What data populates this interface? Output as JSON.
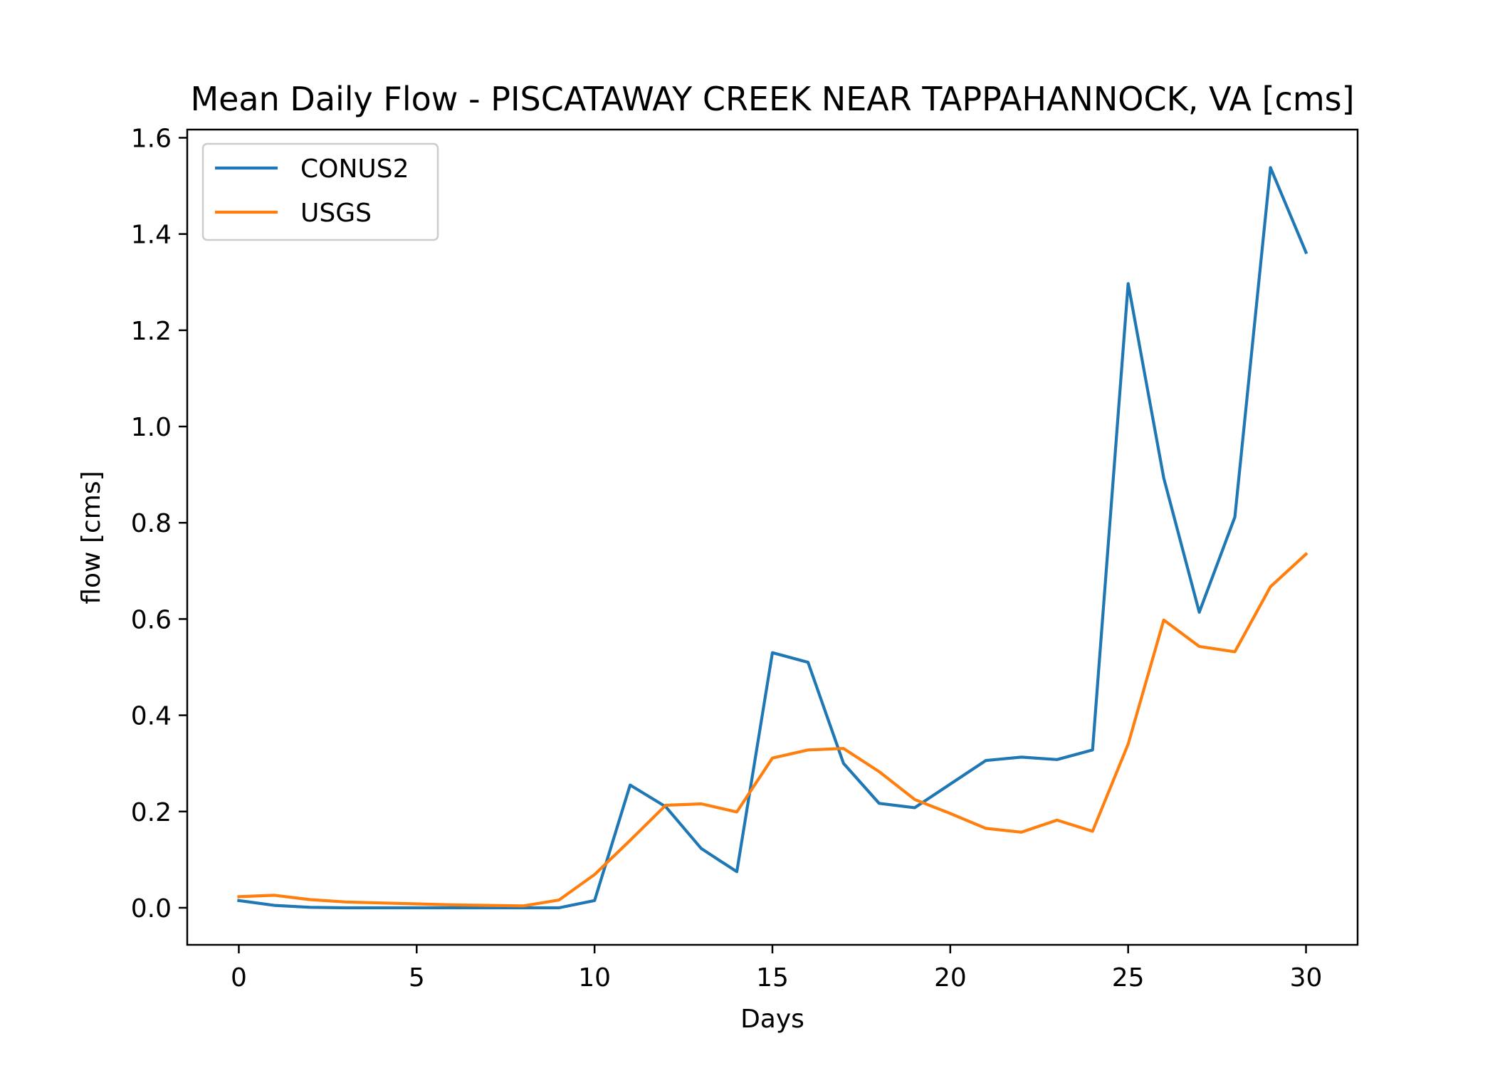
{
  "chart_data": {
    "type": "line",
    "title": "Mean Daily Flow - PISCATAWAY CREEK NEAR TAPPAHANNOCK, VA [cms]",
    "xlabel": "Days",
    "ylabel": "flow [cms]",
    "xlim": [
      -1.45,
      31.45
    ],
    "ylim": [
      -0.077,
      1.617
    ],
    "xticks": [
      0,
      5,
      10,
      15,
      20,
      25,
      30
    ],
    "xtick_labels": [
      "0",
      "5",
      "10",
      "15",
      "20",
      "25",
      "30"
    ],
    "yticks": [
      0.0,
      0.2,
      0.4,
      0.6,
      0.8,
      1.0,
      1.2,
      1.4,
      1.6
    ],
    "ytick_labels": [
      "0.0",
      "0.2",
      "0.4",
      "0.6",
      "0.8",
      "1.0",
      "1.2",
      "1.4",
      "1.6"
    ],
    "grid": false,
    "legend_position": "top-left",
    "x": [
      0,
      1,
      2,
      3,
      4,
      5,
      6,
      7,
      8,
      9,
      10,
      11,
      12,
      13,
      14,
      15,
      16,
      17,
      18,
      19,
      20,
      21,
      22,
      23,
      24,
      25,
      26,
      27,
      28,
      29,
      30
    ],
    "series": [
      {
        "name": "CONUS2",
        "color": "#1f77b4",
        "values": [
          0.015,
          0.005,
          0.001,
          0.0,
          0.0,
          0.0,
          0.0,
          0.0,
          0.0,
          0.0,
          0.015,
          0.255,
          0.21,
          0.123,
          0.075,
          0.53,
          0.51,
          0.3,
          0.217,
          0.208,
          0.257,
          0.306,
          0.313,
          0.308,
          0.328,
          1.297,
          0.893,
          0.614,
          0.812,
          1.538,
          1.362
        ]
      },
      {
        "name": "USGS",
        "color": "#ff7f0e",
        "values": [
          0.023,
          0.026,
          0.017,
          0.012,
          0.01,
          0.008,
          0.006,
          0.005,
          0.004,
          0.016,
          0.069,
          0.14,
          0.213,
          0.216,
          0.199,
          0.311,
          0.328,
          0.331,
          0.283,
          0.225,
          0.196,
          0.165,
          0.157,
          0.182,
          0.159,
          0.34,
          0.598,
          0.543,
          0.532,
          0.667,
          0.735
        ]
      }
    ]
  }
}
